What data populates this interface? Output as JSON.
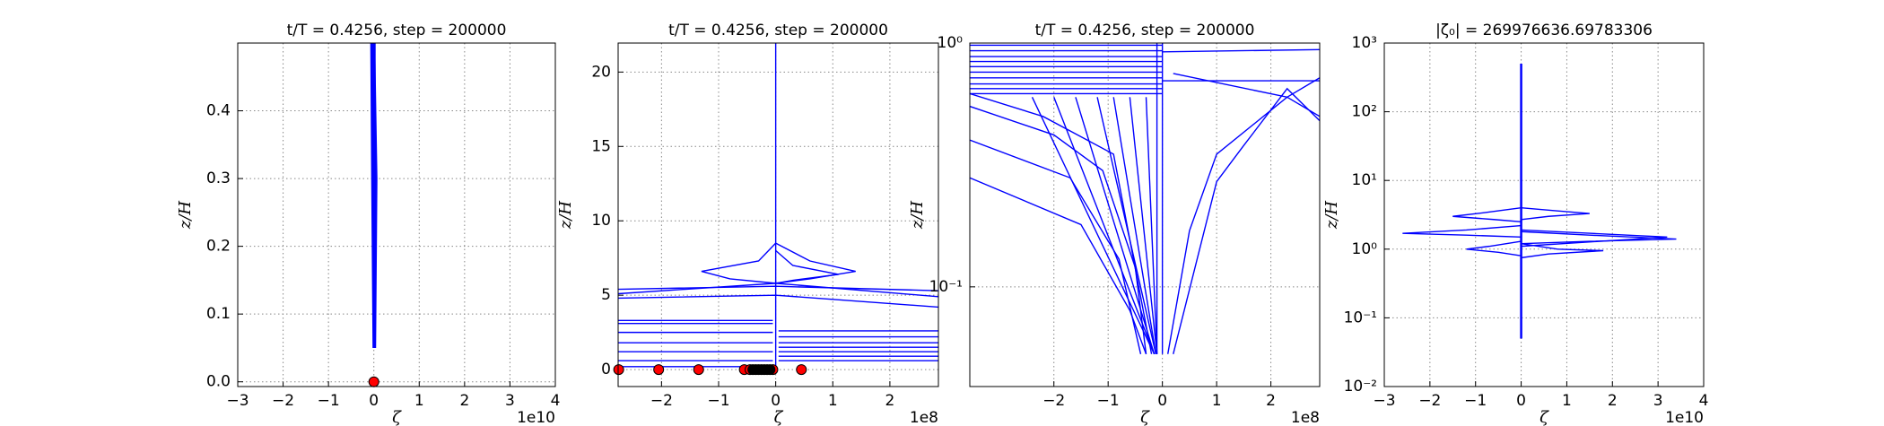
{
  "chart_data": [
    {
      "type": "line",
      "title": "t/T = 0.4256, step = 200000",
      "xlabel": "ζ",
      "ylabel": "z/H",
      "x_offset_label": "1e10",
      "xlim": [
        -3,
        4
      ],
      "ylim": [
        -0.007,
        0.5
      ],
      "log_y": false,
      "grid": true,
      "xticks": [
        {
          "value": -3,
          "label": "−3"
        },
        {
          "value": -2,
          "label": "−2"
        },
        {
          "value": -1,
          "label": "−1"
        },
        0,
        1,
        2,
        3,
        4
      ],
      "yticks": [
        {
          "value": 0,
          "label": "0.0"
        },
        0.1,
        0.2,
        0.3,
        0.4
      ],
      "series": [
        {
          "color": "#0000ff",
          "linewidth": 3,
          "x": [
            0.02,
            0.05,
            0
          ],
          "values": [
            0.05,
            0.3,
            0.5
          ]
        },
        {
          "color": "#0000ff",
          "linewidth": 3,
          "x": [
            0,
            -0.03,
            -0.05
          ],
          "values": [
            0.05,
            0.3,
            0.5
          ]
        },
        {
          "color": "#0000ff",
          "linewidth": 3,
          "x": [
            0.01,
            0.01
          ],
          "values": [
            0.05,
            0.5
          ]
        },
        {
          "color": "#ff0000",
          "marker": "o",
          "x": [
            0
          ],
          "values": [
            0
          ]
        }
      ]
    },
    {
      "type": "line",
      "title": "t/T = 0.4256, step = 200000",
      "xlabel": "ζ",
      "ylabel": "z/H",
      "x_offset_label": "1e8",
      "xlim": [
        -2.76,
        2.85
      ],
      "ylim": [
        -1.14,
        21.95
      ],
      "log_y": false,
      "grid": true,
      "xticks": [
        {
          "value": -2,
          "label": "−2"
        },
        {
          "value": -1,
          "label": "−1"
        },
        0,
        1,
        2
      ],
      "yticks": [
        0,
        5,
        10,
        15,
        20
      ],
      "series": [
        {
          "color": "#0000ff",
          "x": [
            0,
            0,
            0
          ],
          "values": [
            21.95,
            10,
            5.8
          ]
        },
        {
          "color": "#0000ff",
          "x": [
            0,
            -0.3,
            -1.3,
            -0.8,
            0
          ],
          "values": [
            8.5,
            7.3,
            6.6,
            6.1,
            5.8
          ]
        },
        {
          "color": "#0000ff",
          "x": [
            0,
            0.6,
            1.4,
            0.6,
            0
          ],
          "values": [
            8.5,
            7.3,
            6.6,
            6.1,
            5.8
          ]
        },
        {
          "color": "#0000ff",
          "x": [
            0,
            0.3,
            1.1,
            0.3,
            0
          ],
          "values": [
            8,
            7,
            6.4,
            6.0,
            5.8
          ]
        },
        {
          "color": "#0000ff",
          "x": [
            -2.76,
            0,
            2.85
          ],
          "values": [
            5.4,
            5.6,
            5.3
          ]
        },
        {
          "color": "#0000ff",
          "x": [
            -2.76,
            0,
            2.85
          ],
          "values": [
            5.1,
            5.8,
            4.9
          ]
        },
        {
          "color": "#0000ff",
          "x": [
            -2.76,
            0,
            2.85
          ],
          "values": [
            4.8,
            5.0,
            4.2
          ]
        },
        {
          "color": "#0000ff",
          "x": [
            -2.76,
            -0.05
          ],
          "values": [
            3.3,
            3.3
          ]
        },
        {
          "color": "#0000ff",
          "x": [
            -2.76,
            -0.05
          ],
          "values": [
            3.1,
            3.1
          ]
        },
        {
          "color": "#0000ff",
          "x": [
            -2.76,
            -0.05
          ],
          "values": [
            2.5,
            2.5
          ]
        },
        {
          "color": "#0000ff",
          "x": [
            -2.76,
            -0.05
          ],
          "values": [
            1.8,
            1.8
          ]
        },
        {
          "color": "#0000ff",
          "x": [
            -2.76,
            -0.05
          ],
          "values": [
            1.2,
            1.2
          ]
        },
        {
          "color": "#0000ff",
          "x": [
            -2.76,
            -0.05
          ],
          "values": [
            0.6,
            0.6
          ]
        },
        {
          "color": "#0000ff",
          "x": [
            -2.76,
            -0.05
          ],
          "values": [
            0.2,
            0.2
          ]
        },
        {
          "color": "#0000ff",
          "x": [
            0.05,
            2.85
          ],
          "values": [
            2.6,
            2.6
          ]
        },
        {
          "color": "#0000ff",
          "x": [
            0.05,
            2.85
          ],
          "values": [
            2.2,
            2.2
          ]
        },
        {
          "color": "#0000ff",
          "x": [
            0.05,
            2.85
          ],
          "values": [
            1.8,
            1.8
          ]
        },
        {
          "color": "#0000ff",
          "x": [
            0.05,
            2.85
          ],
          "values": [
            1.5,
            1.5
          ]
        },
        {
          "color": "#0000ff",
          "x": [
            0.05,
            2.85
          ],
          "values": [
            1.2,
            1.2
          ]
        },
        {
          "color": "#0000ff",
          "x": [
            0.05,
            2.85
          ],
          "values": [
            0.9,
            0.9
          ]
        },
        {
          "color": "#0000ff",
          "x": [
            0.05,
            2.85
          ],
          "values": [
            0.6,
            0.6
          ]
        },
        {
          "color": "#0000ff",
          "x": [
            0,
            0
          ],
          "values": [
            0,
            6
          ]
        },
        {
          "color": "#ff0000",
          "marker": "o",
          "x": [
            -2.75,
            -2.05,
            -1.35,
            -0.55,
            -0.45,
            -0.35,
            -0.25,
            -0.15,
            -0.05,
            0.45
          ],
          "values": [
            0,
            0,
            0,
            0,
            0,
            0,
            0,
            0,
            0,
            0
          ]
        },
        {
          "color": "#000000",
          "marker": "o",
          "x": [
            -0.4,
            -0.3,
            -0.2,
            -0.1
          ],
          "values": [
            0,
            0,
            0,
            0
          ]
        }
      ]
    },
    {
      "type": "line",
      "title": "t/T = 0.4256, step = 200000",
      "xlabel": "ζ",
      "ylabel": "z/H",
      "x_offset_label": "1e8",
      "xlim": [
        -3.55,
        2.9
      ],
      "ylim": [
        0.039,
        1
      ],
      "log_y": true,
      "grid": true,
      "xticks": [
        {
          "value": -2,
          "label": "−2"
        },
        {
          "value": -1,
          "label": "−1"
        },
        0,
        1,
        2
      ],
      "yticks": [
        {
          "value": 0.1,
          "label": "10⁻¹"
        },
        {
          "value": 1,
          "label": "10⁰"
        }
      ],
      "series": [
        {
          "color": "#0000ff",
          "x": [
            -3.55,
            -1.5,
            -0.6,
            -0.3
          ],
          "values": [
            0.28,
            0.18,
            0.08,
            0.053
          ]
        },
        {
          "color": "#0000ff",
          "x": [
            -3.55,
            -1.7,
            -0.8,
            -0.4
          ],
          "values": [
            0.4,
            0.28,
            0.13,
            0.053
          ]
        },
        {
          "color": "#0000ff",
          "x": [
            -3.55,
            -2.0,
            -1.1,
            -0.5,
            -0.3
          ],
          "values": [
            0.55,
            0.42,
            0.3,
            0.12,
            0.053
          ]
        },
        {
          "color": "#0000ff",
          "x": [
            -3.55,
            -2.2,
            -0.9,
            -0.2
          ],
          "values": [
            0.62,
            0.5,
            0.35,
            0.053
          ]
        },
        {
          "color": "#0000ff",
          "x": [
            -2.4,
            -0.15
          ],
          "values": [
            0.6,
            0.053
          ]
        },
        {
          "color": "#0000ff",
          "x": [
            -2.0,
            -0.15
          ],
          "values": [
            0.6,
            0.053
          ]
        },
        {
          "color": "#0000ff",
          "x": [
            -1.6,
            -0.15
          ],
          "values": [
            0.6,
            0.053
          ]
        },
        {
          "color": "#0000ff",
          "x": [
            -1.2,
            -0.12
          ],
          "values": [
            0.6,
            0.053
          ]
        },
        {
          "color": "#0000ff",
          "x": [
            -0.9,
            -0.12
          ],
          "values": [
            0.6,
            0.053
          ]
        },
        {
          "color": "#0000ff",
          "x": [
            -0.6,
            -0.1
          ],
          "values": [
            0.6,
            0.053
          ]
        },
        {
          "color": "#0000ff",
          "x": [
            -0.3,
            -0.1
          ],
          "values": [
            0.6,
            0.053
          ]
        },
        {
          "color": "#0000ff",
          "x": [
            0.1,
            0.5,
            1.0,
            2.3,
            2.9
          ],
          "values": [
            0.053,
            0.17,
            0.35,
            0.6,
            0.5
          ]
        },
        {
          "color": "#0000ff",
          "x": [
            0.2,
            1.0,
            1.5,
            2.3,
            2.9
          ],
          "values": [
            0.053,
            0.27,
            0.38,
            0.65,
            0.48
          ]
        },
        {
          "color": "#0000ff",
          "x": [
            0,
            2.9
          ],
          "values": [
            0.92,
            0.94
          ]
        },
        {
          "color": "#0000ff",
          "x": [
            0.2,
            2.3,
            2.9
          ],
          "values": [
            0.75,
            0.6,
            0.72
          ]
        },
        {
          "color": "#0000ff",
          "x": [
            0,
            2.9
          ],
          "values": [
            0.7,
            0.7
          ]
        },
        {
          "color": "#0000ff",
          "x": [
            -3.55,
            0
          ],
          "values": [
            0.98,
            0.98
          ]
        },
        {
          "color": "#0000ff",
          "x": [
            -3.55,
            0
          ],
          "values": [
            0.93,
            0.93
          ]
        },
        {
          "color": "#0000ff",
          "x": [
            -3.55,
            0
          ],
          "values": [
            0.88,
            0.88
          ]
        },
        {
          "color": "#0000ff",
          "x": [
            -3.55,
            0
          ],
          "values": [
            0.84,
            0.84
          ]
        },
        {
          "color": "#0000ff",
          "x": [
            -3.55,
            0
          ],
          "values": [
            0.8,
            0.8
          ]
        },
        {
          "color": "#0000ff",
          "x": [
            -3.55,
            0
          ],
          "values": [
            0.76,
            0.76
          ]
        },
        {
          "color": "#0000ff",
          "x": [
            -3.55,
            0
          ],
          "values": [
            0.72,
            0.72
          ]
        },
        {
          "color": "#0000ff",
          "x": [
            -3.55,
            0
          ],
          "values": [
            0.68,
            0.68
          ]
        },
        {
          "color": "#0000ff",
          "x": [
            -3.55,
            0
          ],
          "values": [
            0.65,
            0.65
          ]
        },
        {
          "color": "#0000ff",
          "x": [
            -3.55,
            0
          ],
          "values": [
            0.62,
            0.62
          ]
        },
        {
          "color": "#0000ff",
          "x": [
            0,
            0
          ],
          "values": [
            0.053,
            1
          ]
        },
        {
          "color": "#0000ff",
          "x": [
            -0.1,
            -0.1
          ],
          "values": [
            0.053,
            1
          ]
        }
      ]
    },
    {
      "type": "line",
      "title": "|ζ₀| = 269976636.69783306",
      "xlabel": "ζ",
      "ylabel": "z/H",
      "x_offset_label": "1e10",
      "xlim": [
        -3,
        4
      ],
      "ylim": [
        0.01,
        1000
      ],
      "log_y": true,
      "grid": true,
      "xticks": [
        {
          "value": -3,
          "label": "−3"
        },
        {
          "value": -2,
          "label": "−2"
        },
        {
          "value": -1,
          "label": "−1"
        },
        0,
        1,
        2,
        3,
        4
      ],
      "yticks": [
        {
          "value": 0.01,
          "label": "10⁻²"
        },
        {
          "value": 0.1,
          "label": "10⁻¹"
        },
        {
          "value": 1,
          "label": "10⁰"
        },
        {
          "value": 10,
          "label": "10¹"
        },
        {
          "value": 100,
          "label": "10²"
        },
        {
          "value": 1000,
          "label": "10³"
        }
      ],
      "series": [
        {
          "color": "#0000ff",
          "linewidth": 2.5,
          "x": [
            0,
            0
          ],
          "values": [
            0.05,
            500
          ]
        },
        {
          "color": "#0000ff",
          "x": [
            0,
            -1.2,
            -2.6,
            -1.2,
            0
          ],
          "values": [
            2.2,
            1.9,
            1.7,
            1.6,
            1.5
          ]
        },
        {
          "color": "#0000ff",
          "x": [
            0,
            1.5,
            3.4,
            1.5,
            0
          ],
          "values": [
            1.8,
            1.6,
            1.4,
            1.3,
            1.2
          ]
        },
        {
          "color": "#0000ff",
          "x": [
            0,
            -0.8,
            -1.5,
            -0.6,
            0
          ],
          "values": [
            4,
            3.4,
            3,
            2.7,
            2.5
          ]
        },
        {
          "color": "#0000ff",
          "x": [
            0,
            0.8,
            1.5,
            0.6,
            0
          ],
          "values": [
            4,
            3.6,
            3.3,
            3,
            2.7
          ]
        },
        {
          "color": "#0000ff",
          "x": [
            0,
            -0.7,
            -1.2,
            -0.5,
            0
          ],
          "values": [
            1.3,
            1.1,
            1.0,
            0.9,
            0.8
          ]
        },
        {
          "color": "#0000ff",
          "x": [
            0,
            0.8,
            1.8,
            0.6,
            0
          ],
          "values": [
            1.2,
            1.0,
            0.95,
            0.85,
            0.75
          ]
        },
        {
          "color": "#0000ff",
          "x": [
            0,
            3.2,
            0
          ],
          "values": [
            1.9,
            1.5,
            1.1
          ]
        }
      ]
    }
  ]
}
